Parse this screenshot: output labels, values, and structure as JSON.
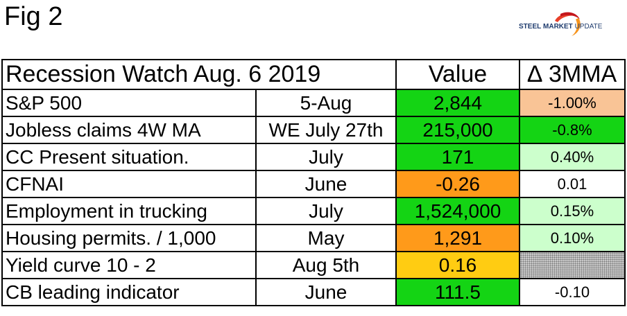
{
  "figure_label": "Fig 2",
  "logo": {
    "word1": "STEEL",
    "word2": "MARKET",
    "word3": "UPDATE",
    "icon": "swoosh-logo-icon"
  },
  "table": {
    "title": "Recession Watch  Aug. 6 2019",
    "value_header": "Value",
    "change_header": "∆ 3MMA",
    "rows": [
      {
        "indicator": "S&P 500",
        "period": "5-Aug",
        "value": "2,844",
        "change": "-1.00%",
        "value_color": "#14d414",
        "change_color": "#f9c496"
      },
      {
        "indicator": "Jobless claims 4W MA",
        "period": "WE July 27th",
        "value": "215,000",
        "change": "-0.8%",
        "value_color": "#14d414",
        "change_color": "#14d414"
      },
      {
        "indicator": "CC Present situation.",
        "period": "July",
        "value": "171",
        "change": "0.40%",
        "value_color": "#14d414",
        "change_color": "#ccffcc"
      },
      {
        "indicator": "CFNAI",
        "period": "June",
        "value": "-0.26",
        "change": "0.01",
        "value_color": "#ff9a1a",
        "change_color": "#ffffff"
      },
      {
        "indicator": "Employment in trucking",
        "period": "July",
        "value": "1,524,000",
        "change": "0.15%",
        "value_color": "#14d414",
        "change_color": "#ccffcc"
      },
      {
        "indicator": "Housing permits. / 1,000",
        "period": "May",
        "value": "1,291",
        "change": "0.10%",
        "value_color": "#ff9a1a",
        "change_color": "#ccffcc"
      },
      {
        "indicator": "Yield curve 10 - 2",
        "period": "Aug 5th",
        "value": "0.16",
        "change": "",
        "value_color": "#ffcc12",
        "change_color": "hatched"
      },
      {
        "indicator": "CB leading indicator",
        "period": "June",
        "value": "111.5",
        "change": "-0.10",
        "value_color": "#14d414",
        "change_color": "#ffffff"
      }
    ]
  }
}
